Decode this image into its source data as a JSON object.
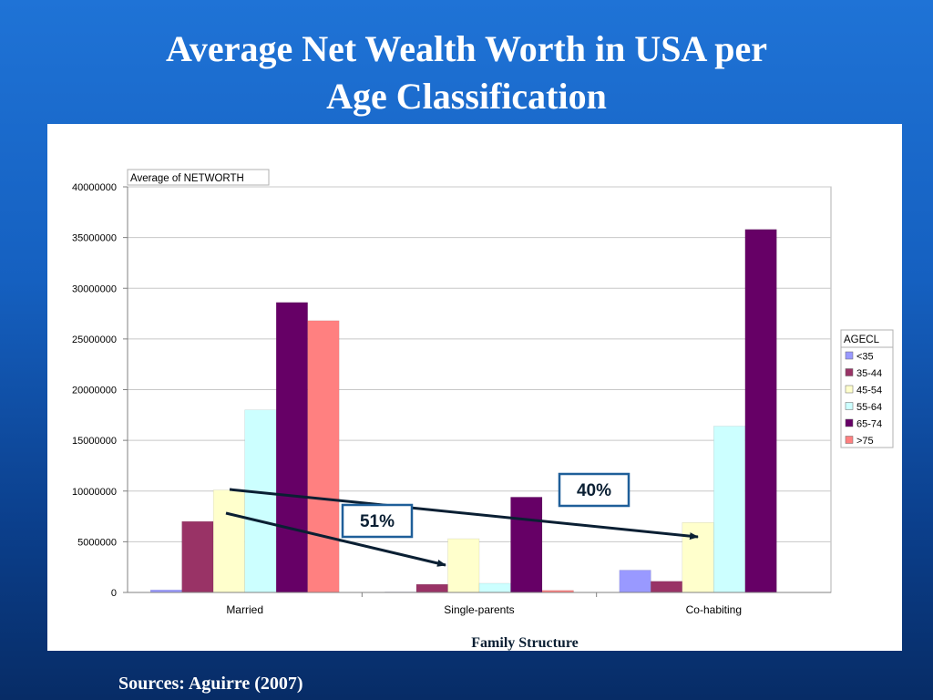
{
  "slide": {
    "title_line1": "Average Net Wealth Worth in USA per",
    "title_line2": "Age Classification",
    "source": "Sources: Aguirre (2007)"
  },
  "chart_data": {
    "type": "bar",
    "field_label": "Average of NETWORTH",
    "xlabel": "Family Structure",
    "ylabel": "",
    "ylim": [
      0,
      40000000
    ],
    "yticks": [
      0,
      5000000,
      10000000,
      15000000,
      20000000,
      25000000,
      30000000,
      35000000,
      40000000
    ],
    "grid": true,
    "legend_title": "AGECL",
    "legend_position": "right",
    "categories": [
      "Married",
      "Single-parents",
      "Co-habiting"
    ],
    "series": [
      {
        "name": "<35",
        "color": "#9999ff",
        "values": [
          250000,
          50000,
          2200000
        ]
      },
      {
        "name": "35-44",
        "color": "#993366",
        "values": [
          7000000,
          800000,
          1100000
        ]
      },
      {
        "name": "45-54",
        "color": "#ffffcc",
        "values": [
          10100000,
          5300000,
          6900000
        ]
      },
      {
        "name": "55-64",
        "color": "#ccffff",
        "values": [
          18000000,
          900000,
          16400000
        ]
      },
      {
        "name": "65-74",
        "color": "#660066",
        "values": [
          28600000,
          9400000,
          35800000
        ]
      },
      {
        "name": ">75",
        "color": "#ff8080",
        "values": [
          26800000,
          200000,
          0
        ]
      }
    ],
    "annotations": [
      {
        "text": "51%"
      },
      {
        "text": "40%"
      }
    ]
  }
}
